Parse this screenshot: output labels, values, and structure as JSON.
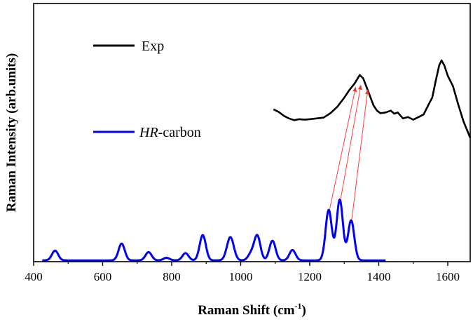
{
  "chart_data": {
    "type": "line",
    "title": "",
    "xlabel": "Raman Shift (cm",
    "xlabel_sup": "-1",
    "xlabel_close": ")",
    "ylabel": "Raman Intensity (arb.units)",
    "xlim": [
      400,
      1665
    ],
    "ylim": [
      0,
      100
    ],
    "xticks": [
      400,
      600,
      800,
      1000,
      1200,
      1400,
      1600
    ],
    "yticks_shown": false,
    "legend": {
      "placement": "left",
      "entries": [
        {
          "series": "Exp",
          "prefix": "",
          "italic_part": "",
          "rest": "Exp"
        },
        {
          "series": "HR-carbon",
          "prefix": "",
          "italic_part": "HR",
          "rest": "-carbon"
        }
      ]
    },
    "series": [
      {
        "name": "Exp",
        "color": "#000000",
        "x": [
          1095,
          1110,
          1125,
          1140,
          1155,
          1170,
          1185,
          1200,
          1220,
          1240,
          1260,
          1280,
          1300,
          1315,
          1330,
          1345,
          1355,
          1365,
          1375,
          1385,
          1395,
          1405,
          1420,
          1435,
          1445,
          1455,
          1470,
          1485,
          1500,
          1515,
          1530,
          1545,
          1555,
          1565,
          1575,
          1582,
          1590,
          1600,
          1615,
          1630,
          1645,
          1665
        ],
        "values": [
          59.0,
          58.0,
          56.5,
          55.5,
          54.8,
          55.2,
          55.0,
          55.2,
          55.5,
          55.8,
          57.5,
          60.0,
          63.5,
          66.5,
          69.0,
          72.3,
          71.0,
          67.5,
          64.0,
          60.5,
          58.5,
          57.5,
          57.8,
          58.5,
          57.3,
          57.8,
          55.5,
          56.0,
          55.0,
          56.0,
          57.0,
          61.0,
          63.5,
          70.0,
          76.0,
          78.0,
          76.0,
          72.0,
          68.0,
          61.0,
          54.5,
          48.0
        ]
      },
      {
        "name": "HR-carbon",
        "color": "#0000ff",
        "baseline": 0.5,
        "x_range": [
          425,
          1420
        ],
        "peaks": [
          {
            "center": 462,
            "height": 3.8,
            "width": 9
          },
          {
            "center": 655,
            "height": 6.5,
            "width": 9
          },
          {
            "center": 733,
            "height": 3.2,
            "width": 9
          },
          {
            "center": 785,
            "height": 1.0,
            "width": 9
          },
          {
            "center": 840,
            "height": 2.8,
            "width": 9
          },
          {
            "center": 890,
            "height": 9.8,
            "width": 9
          },
          {
            "center": 970,
            "height": 9.0,
            "width": 10
          },
          {
            "center": 1030,
            "height": 2.5,
            "width": 9
          },
          {
            "center": 1048,
            "height": 9.5,
            "width": 9
          },
          {
            "center": 1092,
            "height": 7.6,
            "width": 9
          },
          {
            "center": 1150,
            "height": 4.0,
            "width": 9
          },
          {
            "center": 1255,
            "height": 19.5,
            "width": 9
          },
          {
            "center": 1287,
            "height": 23.5,
            "width": 9
          },
          {
            "center": 1320,
            "height": 15.5,
            "width": 9
          }
        ]
      }
    ],
    "annotations": {
      "type": "arrows",
      "color": "#ff4040",
      "pairs": [
        {
          "from": [
            1258,
            20.5
          ],
          "to": [
            1333,
            67.5
          ]
        },
        {
          "from": [
            1290,
            24.5
          ],
          "to": [
            1348,
            68.3
          ]
        },
        {
          "from": [
            1322,
            16.5
          ],
          "to": [
            1368,
            66.5
          ]
        }
      ]
    }
  }
}
